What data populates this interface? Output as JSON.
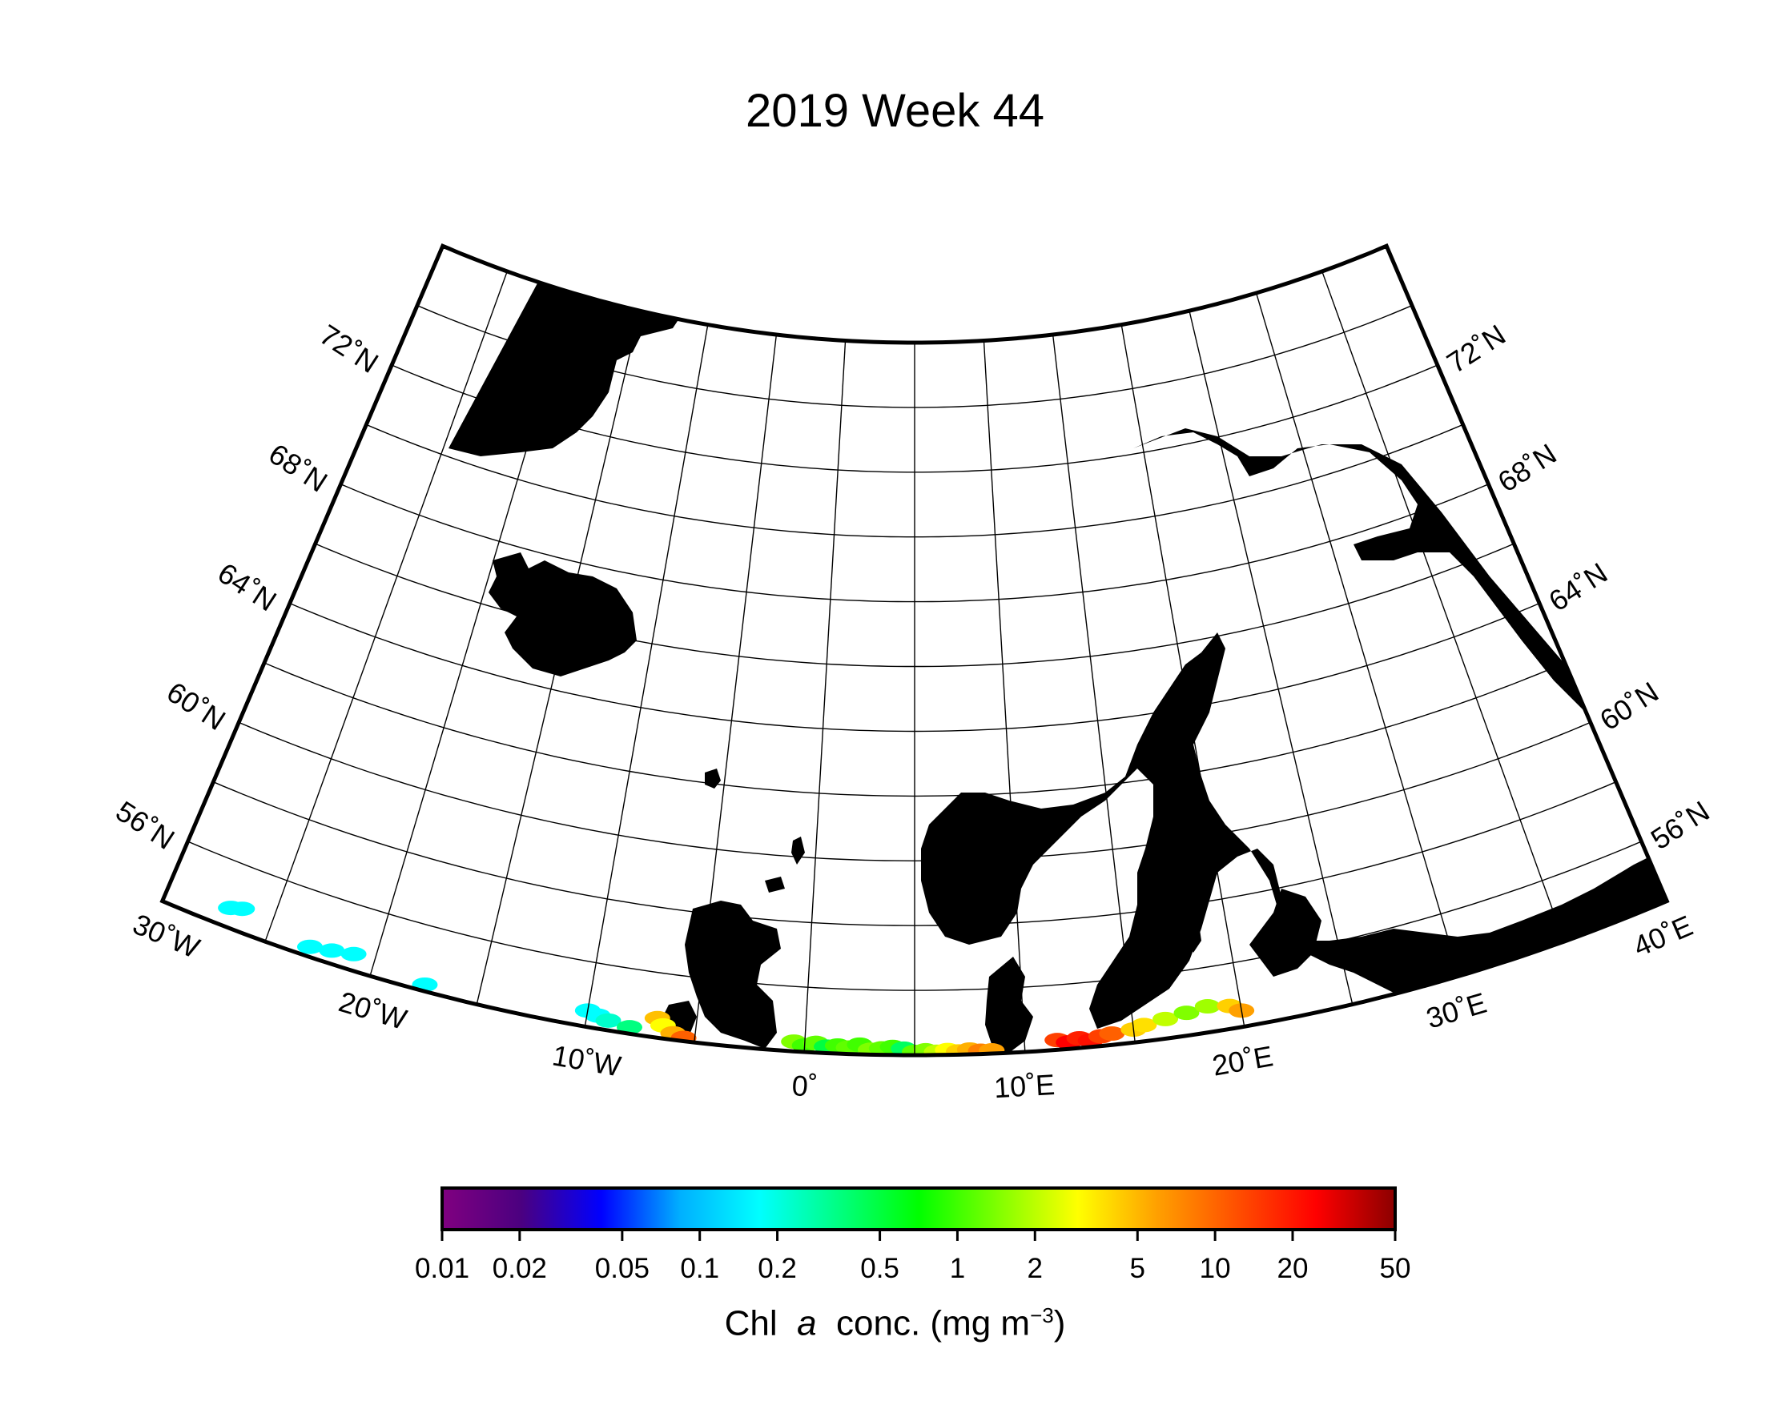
{
  "title": "2019 Week 44",
  "projection": "conic",
  "extent": {
    "lon": [
      -30,
      40
    ],
    "lat": [
      54,
      76
    ]
  },
  "graticule": {
    "lat_labels_left": [
      "72˚N",
      "68˚N",
      "64˚N",
      "60˚N",
      "56˚N"
    ],
    "lat_labels_right": [
      "72˚N",
      "68˚N",
      "64˚N",
      "60˚N",
      "56˚N"
    ],
    "lon_labels": [
      "30˚W",
      "20˚W",
      "10˚W",
      "0˚",
      "10˚E",
      "20˚E",
      "30˚E",
      "40˚E"
    ]
  },
  "colorbar": {
    "scale": "log",
    "range": [
      0.01,
      50
    ],
    "colors": [
      "#800080",
      "#4b0080",
      "#0000ff",
      "#00b0ff",
      "#00ffff",
      "#00ff80",
      "#00ff00",
      "#80ff00",
      "#ffff00",
      "#ffa000",
      "#ff5000",
      "#ff0000",
      "#8b0000"
    ],
    "ticks": [
      "0.01",
      "0.02",
      "0.05",
      "0.1",
      "0.2",
      "0.5",
      "1",
      "2",
      "5",
      "10",
      "20",
      "50"
    ],
    "label_prefix": "Chl",
    "label_italic": "a",
    "label_suffix": "conc. (mg m",
    "label_sup": "−3",
    "label_close": ")"
  },
  "colors": {
    "land": "#000000",
    "ocean": "#ffffff",
    "grid": "#000000"
  }
}
